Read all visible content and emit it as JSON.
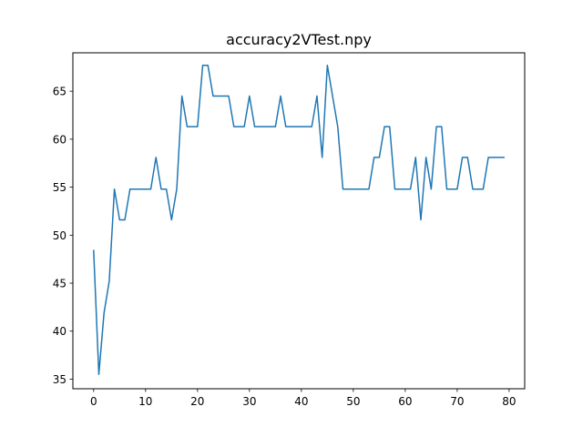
{
  "chart_data": {
    "type": "line",
    "title": "accuracy2VTest.npy",
    "xlabel": "",
    "ylabel": "",
    "xlim": [
      -4,
      83
    ],
    "ylim": [
      34,
      69
    ],
    "xticks": [
      0,
      10,
      20,
      30,
      40,
      50,
      60,
      70,
      80
    ],
    "yticks": [
      35,
      40,
      45,
      50,
      55,
      60,
      65
    ],
    "grid": false,
    "legend": "none",
    "series": [
      {
        "color": "#1f77b4",
        "x": [
          0,
          1,
          2,
          3,
          4,
          5,
          6,
          7,
          8,
          9,
          10,
          11,
          12,
          13,
          14,
          15,
          16,
          17,
          18,
          19,
          20,
          21,
          22,
          23,
          24,
          25,
          26,
          27,
          28,
          29,
          30,
          31,
          32,
          33,
          34,
          35,
          36,
          37,
          38,
          39,
          40,
          41,
          42,
          43,
          44,
          45,
          46,
          47,
          48,
          49,
          50,
          51,
          52,
          53,
          54,
          55,
          56,
          57,
          58,
          59,
          60,
          61,
          62,
          63,
          64,
          65,
          66,
          67,
          68,
          69,
          70,
          71,
          72,
          73,
          74,
          75,
          76,
          77,
          78,
          79
        ],
        "values": [
          48.4,
          35.5,
          41.9,
          45.2,
          54.8,
          51.6,
          51.6,
          54.8,
          54.8,
          54.8,
          54.8,
          54.8,
          58.1,
          54.8,
          54.8,
          51.6,
          54.8,
          64.5,
          61.3,
          61.3,
          61.3,
          67.7,
          67.7,
          64.5,
          64.5,
          64.5,
          64.5,
          61.3,
          61.3,
          61.3,
          64.5,
          61.3,
          61.3,
          61.3,
          61.3,
          61.3,
          64.5,
          61.3,
          61.3,
          61.3,
          61.3,
          61.3,
          61.3,
          64.5,
          58.1,
          67.7,
          64.5,
          61.3,
          54.8,
          54.8,
          54.8,
          54.8,
          54.8,
          54.8,
          58.1,
          58.1,
          61.3,
          61.3,
          54.8,
          54.8,
          54.8,
          54.8,
          58.1,
          51.6,
          58.1,
          54.8,
          61.3,
          61.3,
          54.8,
          54.8,
          54.8,
          58.1,
          58.1,
          54.8,
          54.8,
          54.8,
          58.1,
          58.1,
          58.1,
          58.1
        ]
      }
    ]
  }
}
